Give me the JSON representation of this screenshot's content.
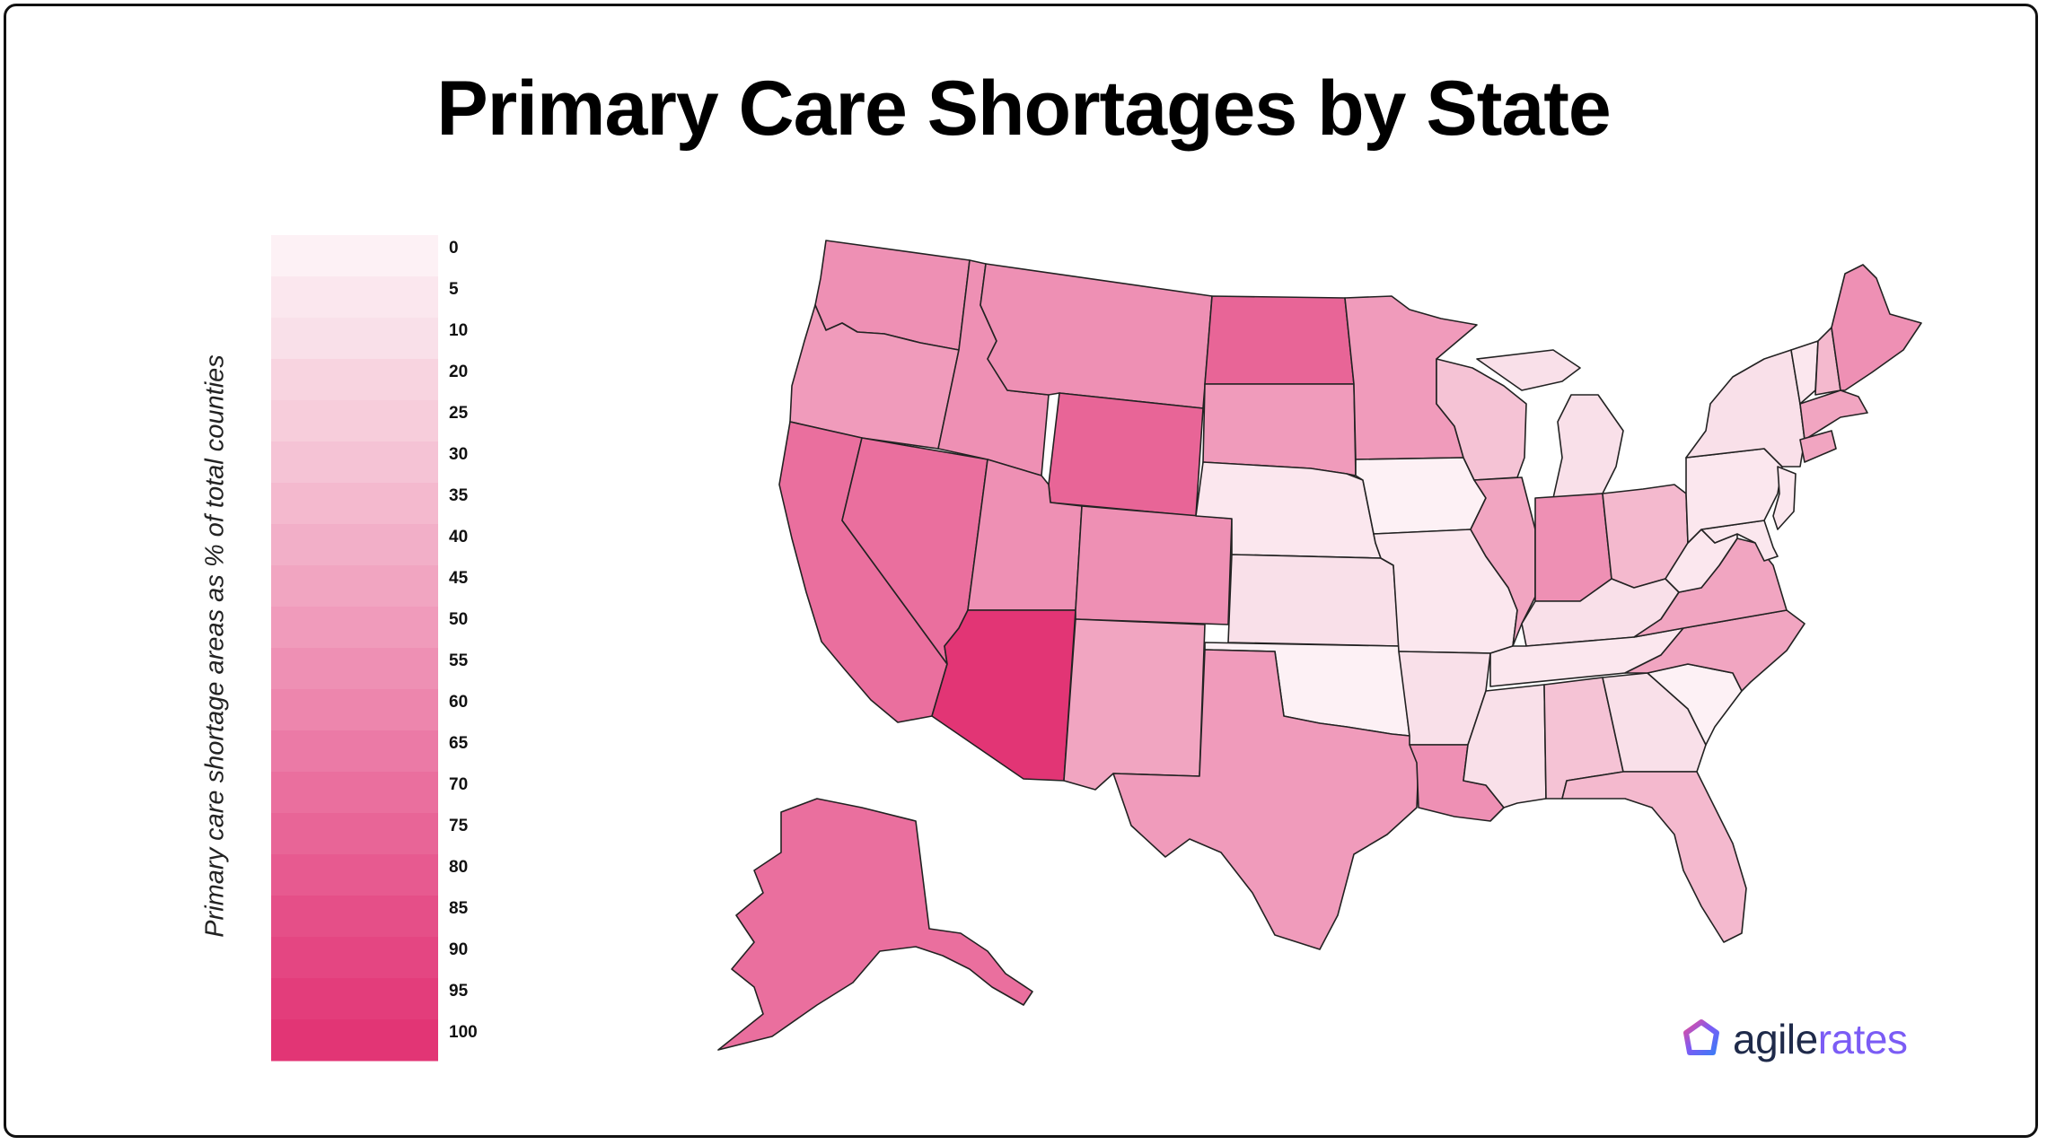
{
  "title": "Primary Care Shortages by State",
  "legend": {
    "title": "Primary care shortage areas as % of total counties",
    "ticks": [
      "0",
      "5",
      "10",
      "20",
      "25",
      "30",
      "35",
      "40",
      "45",
      "50",
      "55",
      "60",
      "65",
      "70",
      "75",
      "80",
      "85",
      "90",
      "95",
      "100"
    ],
    "colors": [
      "#fdf1f5",
      "#fbe7ee",
      "#f9e0e9",
      "#f8d4e0",
      "#f7cddb",
      "#f5c3d5",
      "#f4b9ce",
      "#f2afc8",
      "#f1a5c1",
      "#f09bbb",
      "#ee90b4",
      "#ed86ad",
      "#eb7aa6",
      "#ea6f9e",
      "#e86597",
      "#e75a90",
      "#e54f88",
      "#e44682",
      "#e33d7b",
      "#e23575"
    ]
  },
  "logo": {
    "name_part1": "agile",
    "name_part2": "rates",
    "icon": "agilerates-logo-icon",
    "brand_color": "#7b5cf5"
  },
  "chart_data": {
    "type": "choropleth",
    "title": "Primary Care Shortages by State",
    "legend_label": "Primary care shortage areas as % of total counties",
    "scale": [
      0,
      100
    ],
    "values": [
      {
        "state": "WA",
        "value": 55
      },
      {
        "state": "OR",
        "value": 45
      },
      {
        "state": "CA",
        "value": 70
      },
      {
        "state": "NV",
        "value": 70
      },
      {
        "state": "ID",
        "value": 50
      },
      {
        "state": "MT",
        "value": 55
      },
      {
        "state": "WY",
        "value": 75
      },
      {
        "state": "UT",
        "value": 50
      },
      {
        "state": "AZ",
        "value": 100
      },
      {
        "state": "CO",
        "value": 50
      },
      {
        "state": "NM",
        "value": 40
      },
      {
        "state": "ND",
        "value": 75
      },
      {
        "state": "SD",
        "value": 45
      },
      {
        "state": "NE",
        "value": 5
      },
      {
        "state": "KS",
        "value": 10
      },
      {
        "state": "OK",
        "value": 0
      },
      {
        "state": "TX",
        "value": 45
      },
      {
        "state": "MN",
        "value": 45
      },
      {
        "state": "IA",
        "value": 0
      },
      {
        "state": "MO",
        "value": 5
      },
      {
        "state": "AR",
        "value": 10
      },
      {
        "state": "LA",
        "value": 55
      },
      {
        "state": "WI",
        "value": 25
      },
      {
        "state": "IL",
        "value": 40
      },
      {
        "state": "MI",
        "value": 10
      },
      {
        "state": "IN",
        "value": 50
      },
      {
        "state": "OH",
        "value": 30
      },
      {
        "state": "KY",
        "value": 10
      },
      {
        "state": "TN",
        "value": 5
      },
      {
        "state": "MS",
        "value": 10
      },
      {
        "state": "AL",
        "value": 25
      },
      {
        "state": "GA",
        "value": 10
      },
      {
        "state": "FL",
        "value": 30
      },
      {
        "state": "SC",
        "value": 0
      },
      {
        "state": "NC",
        "value": 40
      },
      {
        "state": "VA",
        "value": 40
      },
      {
        "state": "WV",
        "value": 5
      },
      {
        "state": "PA",
        "value": 5
      },
      {
        "state": "NY",
        "value": 10
      },
      {
        "state": "VT",
        "value": 5
      },
      {
        "state": "NH",
        "value": 30
      },
      {
        "state": "ME",
        "value": 55
      },
      {
        "state": "MA",
        "value": 40
      },
      {
        "state": "MD",
        "value": 5
      },
      {
        "state": "AK",
        "value": 70
      }
    ]
  }
}
